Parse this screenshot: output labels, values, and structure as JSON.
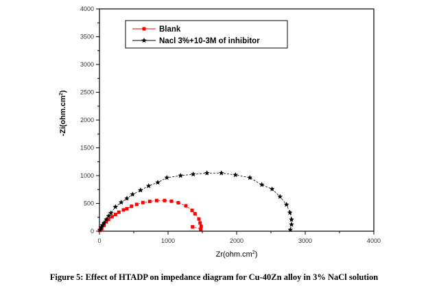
{
  "chart_data": {
    "type": "scatter",
    "xlabel": "Zr(ohm.cm",
    "xlabel_sup": "2",
    "ylabel": "-Zi(ohm.cm",
    "ylabel_sup": "2",
    "xlim": [
      0,
      4000
    ],
    "ylim": [
      0,
      4000
    ],
    "xticks": [
      0,
      1000,
      2000,
      3000,
      4000
    ],
    "yticks": [
      0,
      500,
      1000,
      1500,
      2000,
      2500,
      3000,
      3500,
      4000
    ],
    "legend_position": "top-left",
    "series": [
      {
        "name": "Blank",
        "color": "#ff0000",
        "marker": "square",
        "x": [
          0,
          17,
          33,
          67,
          100,
          133,
          183,
          233,
          283,
          350,
          400,
          467,
          543,
          633,
          733,
          833,
          950,
          1050,
          1150,
          1260,
          1350,
          1393,
          1450,
          1467,
          1483,
          1477,
          1357
        ],
        "y": [
          13,
          25,
          46,
          107,
          169,
          210,
          260,
          301,
          342,
          383,
          404,
          449,
          482,
          515,
          536,
          552,
          552,
          540,
          511,
          457,
          375,
          313,
          219,
          149,
          87,
          38,
          79
        ]
      },
      {
        "name": "Nacl 3%+10-3M of inhibitor",
        "color": "#000000",
        "marker": "star",
        "x": [
          10,
          23,
          43,
          67,
          100,
          133,
          167,
          233,
          317,
          400,
          483,
          600,
          717,
          850,
          983,
          1183,
          1367,
          1567,
          1777,
          1983,
          2193,
          2367,
          2517,
          2633,
          2727,
          2777,
          2800,
          2800,
          2783
        ],
        "y": [
          25,
          66,
          107,
          149,
          210,
          272,
          326,
          437,
          519,
          589,
          663,
          737,
          815,
          877,
          963,
          1000,
          1025,
          1046,
          1046,
          1013,
          963,
          836,
          758,
          622,
          478,
          334,
          210,
          120,
          25
        ]
      }
    ]
  },
  "caption": "Figure 5: Effect of HTADP on impedance diagram for Cu-40Zn alloy in 3% NaCl solution"
}
